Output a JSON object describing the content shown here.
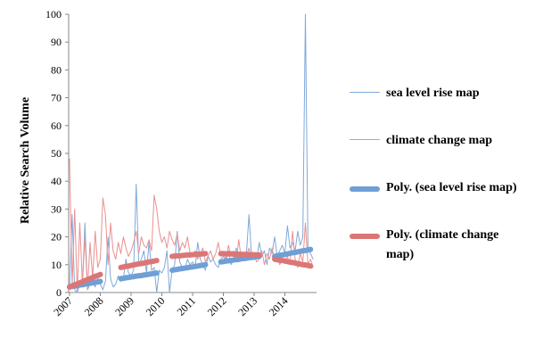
{
  "chart_data": {
    "type": "line",
    "y_label": "Relative Search Volume",
    "categories": [
      "2007",
      null,
      null,
      null,
      null,
      null,
      null,
      null,
      null,
      null,
      null,
      null,
      "2008",
      null,
      null,
      null,
      null,
      null,
      null,
      null,
      null,
      null,
      null,
      null,
      "2009",
      null,
      null,
      null,
      null,
      null,
      null,
      null,
      null,
      null,
      null,
      null,
      "2010",
      null,
      null,
      null,
      null,
      null,
      null,
      null,
      null,
      null,
      null,
      null,
      "2011",
      null,
      null,
      null,
      null,
      null,
      null,
      null,
      null,
      null,
      null,
      null,
      "2012",
      null,
      null,
      null,
      null,
      null,
      null,
      null,
      null,
      null,
      null,
      null,
      "2013",
      null,
      null,
      null,
      null,
      null,
      null,
      null,
      null,
      null,
      null,
      null,
      "2014",
      null,
      null,
      null,
      null,
      null,
      null,
      null,
      null,
      null,
      null,
      null
    ],
    "series": [
      {
        "name": "sea level rise map",
        "color": "#7fa9d9",
        "linewidth": 1,
        "values": [
          2,
          28,
          1,
          0,
          3,
          2,
          25,
          1,
          3,
          4,
          2,
          5,
          3,
          1,
          4,
          20,
          5,
          2,
          3,
          6,
          4,
          5,
          12,
          7,
          6,
          8,
          39,
          10,
          12,
          15,
          7,
          18,
          8,
          9,
          0,
          8,
          7,
          9,
          15,
          0,
          8,
          10,
          22,
          11,
          9,
          8,
          12,
          10,
          11,
          9,
          18,
          12,
          10,
          8,
          13,
          11,
          12,
          10,
          9,
          12,
          13,
          11,
          15,
          10,
          12,
          16,
          11,
          13,
          12,
          14,
          28,
          13,
          14,
          12,
          18,
          13,
          15,
          10,
          16,
          14,
          20,
          13,
          15,
          17,
          14,
          24,
          16,
          18,
          15,
          22,
          17,
          20,
          100,
          16,
          14,
          12
        ]
      },
      {
        "name": "climate change map",
        "color": "#ea9090",
        "linewidth": 1,
        "values": [
          48,
          2,
          30,
          0,
          25,
          3,
          20,
          1,
          18,
          5,
          22,
          9,
          12,
          34,
          28,
          10,
          25,
          15,
          12,
          18,
          14,
          20,
          16,
          13,
          15,
          18,
          22,
          14,
          20,
          17,
          16,
          19,
          15,
          35,
          30,
          22,
          18,
          20,
          16,
          22,
          19,
          17,
          21,
          15,
          18,
          16,
          20,
          14,
          13,
          15,
          12,
          14,
          16,
          11,
          13,
          15,
          12,
          14,
          18,
          13,
          14,
          12,
          17,
          13,
          15,
          11,
          19,
          12,
          14,
          13,
          16,
          12,
          13,
          11,
          12,
          15,
          10,
          14,
          12,
          16,
          11,
          13,
          10,
          12,
          11,
          13,
          10,
          22,
          12,
          9,
          14,
          11,
          25,
          10,
          12,
          9
        ]
      },
      {
        "name": "Poly. (sea level rise map)",
        "color": "#6f9fd5",
        "linewidth": 6,
        "values": [
          2.0,
          2.2,
          2.3,
          2.5,
          2.7,
          2.8,
          3.0,
          3.2,
          3.3,
          3.5,
          3.7,
          3.8,
          4.0,
          null,
          null,
          null,
          null,
          null,
          null,
          null,
          5.0,
          5.1,
          5.3,
          5.4,
          5.6,
          5.7,
          5.9,
          6.0,
          6.1,
          6.3,
          6.4,
          6.6,
          6.7,
          6.9,
          7.0,
          null,
          null,
          null,
          null,
          null,
          8.0,
          8.2,
          8.3,
          8.5,
          8.6,
          8.8,
          8.9,
          9.1,
          9.2,
          9.4,
          9.5,
          9.7,
          9.8,
          10.0,
          null,
          null,
          null,
          null,
          null,
          11.0,
          11.1,
          11.3,
          11.4,
          11.5,
          11.7,
          11.8,
          11.9,
          12.1,
          12.2,
          12.3,
          12.5,
          12.6,
          12.7,
          12.9,
          13.0,
          null,
          null,
          null,
          null,
          null,
          13.0,
          13.2,
          13.4,
          13.5,
          13.7,
          13.9,
          14.1,
          14.3,
          14.4,
          14.6,
          14.8,
          15.0,
          15.1,
          15.3,
          15.5,
          null
        ]
      },
      {
        "name": "Poly. (climate change map)",
        "color": "#dc7676",
        "linewidth": 6,
        "values": [
          2.0,
          2.4,
          2.8,
          3.1,
          3.5,
          3.9,
          4.3,
          4.6,
          5.0,
          5.4,
          5.8,
          6.1,
          6.5,
          null,
          null,
          null,
          null,
          null,
          null,
          null,
          9.0,
          9.2,
          9.4,
          9.5,
          9.7,
          9.9,
          10.1,
          10.3,
          10.4,
          10.6,
          10.8,
          11.0,
          11.1,
          11.3,
          11.5,
          null,
          null,
          null,
          null,
          null,
          13.0,
          13.1,
          13.2,
          13.2,
          13.3,
          13.4,
          13.5,
          13.5,
          13.6,
          13.7,
          13.8,
          13.8,
          13.9,
          14.0,
          null,
          null,
          null,
          null,
          null,
          14.0,
          14.0,
          13.9,
          13.9,
          13.9,
          13.8,
          13.8,
          13.8,
          13.7,
          13.7,
          13.7,
          13.6,
          13.6,
          13.6,
          13.5,
          13.5,
          null,
          null,
          null,
          null,
          null,
          12.0,
          11.8,
          11.6,
          11.5,
          11.3,
          11.1,
          10.9,
          10.8,
          10.6,
          10.4,
          10.2,
          10.0,
          9.9,
          9.7,
          9.5,
          null
        ]
      }
    ],
    "ylim": [
      0,
      100
    ],
    "yticks": [
      0,
      10,
      20,
      30,
      40,
      50,
      60,
      70,
      80,
      90,
      100
    ],
    "grid": false,
    "legend": "right"
  }
}
